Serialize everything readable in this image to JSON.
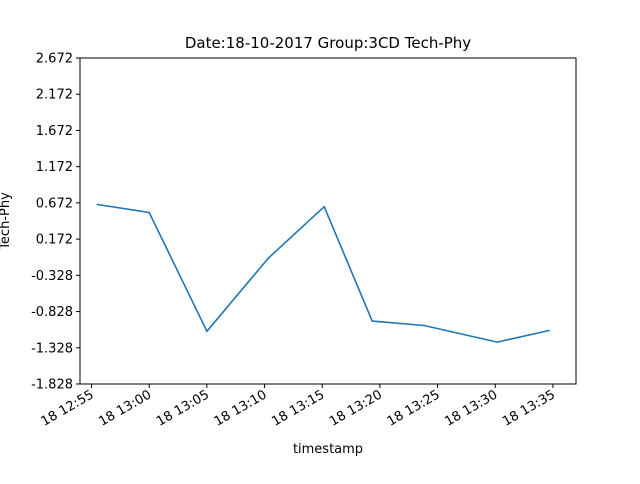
{
  "chart_data": {
    "type": "line",
    "title": "Date:18-10-2017 Group:3CD Tech-Phy",
    "xlabel": "timestamp",
    "ylabel": "Tech-Phy",
    "x_ticks": [
      "18 12:55",
      "18 13:00",
      "18 13:05",
      "18 13:10",
      "18 13:15",
      "18 13:20",
      "18 13:25",
      "18 13:30",
      "18 13:35"
    ],
    "y_ticks": [
      "-1.828",
      "-1.328",
      "-0.828",
      "-0.328",
      "0.172",
      "0.672",
      "1.172",
      "1.672",
      "2.172",
      "2.672"
    ],
    "ylim": [
      -1.828,
      2.672
    ],
    "xlim": [
      "2017-10-18 12:54:00",
      "2017-10-18 13:37:00"
    ],
    "grid": false,
    "series": [
      {
        "color": "#1f77b4",
        "x": [
          "2017-10-18 12:55:30",
          "2017-10-18 13:00:00",
          "2017-10-18 13:05:00",
          "2017-10-18 13:10:20",
          "2017-10-18 13:15:10",
          "2017-10-18 13:19:20",
          "2017-10-18 13:23:50",
          "2017-10-18 13:30:10",
          "2017-10-18 13:34:40"
        ],
        "y": [
          0.65,
          0.54,
          -1.1,
          -0.09,
          0.62,
          -0.96,
          -1.02,
          -1.25,
          -1.09
        ]
      }
    ]
  }
}
